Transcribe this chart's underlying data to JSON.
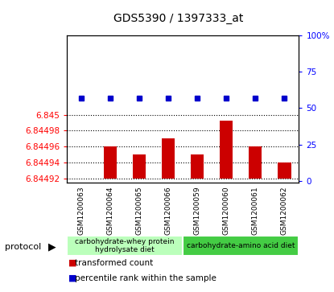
{
  "title": "GDS5390 / 1397333_at",
  "samples": [
    "GSM1200063",
    "GSM1200064",
    "GSM1200065",
    "GSM1200066",
    "GSM1200059",
    "GSM1200060",
    "GSM1200061",
    "GSM1200062"
  ],
  "bar_values": [
    6.84492,
    6.84496,
    6.84495,
    6.84497,
    6.84495,
    6.844993,
    6.84496,
    6.84494
  ],
  "percentile_values": [
    57,
    57,
    57,
    57,
    57,
    57,
    57,
    57
  ],
  "ylim_left": [
    6.844915,
    6.8451
  ],
  "ylim_right": [
    -1,
    100
  ],
  "yticks_left": [
    6.84492,
    6.84494,
    6.84496,
    6.84498,
    6.845
  ],
  "ytick_labels_left": [
    "6.84492",
    "6.84494",
    "6.84496",
    "6.84498",
    "6.845"
  ],
  "yticks_right": [
    0,
    25,
    50,
    75,
    100
  ],
  "ytick_labels_right": [
    "0",
    "25",
    "50",
    "75",
    "100%"
  ],
  "bar_color": "#cc0000",
  "dot_color": "#0000cc",
  "baseline": 6.84492,
  "groups": [
    {
      "label": "carbohydrate-whey protein\nhydrolysate diet",
      "indices": [
        0,
        1,
        2,
        3
      ],
      "color": "#bbffbb"
    },
    {
      "label": "carbohydrate-amino acid diet",
      "indices": [
        4,
        5,
        6,
        7
      ],
      "color": "#44cc44"
    }
  ],
  "protocol_label": "protocol",
  "legend_items": [
    {
      "label": "  transformed count",
      "color": "#cc0000"
    },
    {
      "label": "  percentile rank within the sample",
      "color": "#0000cc"
    }
  ],
  "plot_bg": "#ffffff",
  "sample_bg": "#d8d8d8"
}
